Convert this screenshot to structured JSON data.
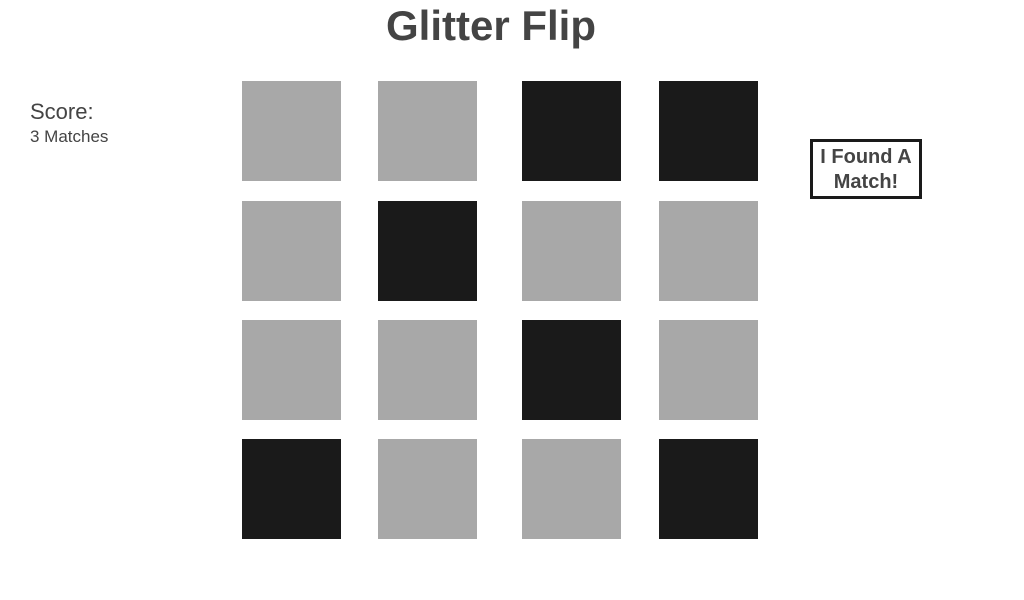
{
  "game": {
    "title": "Glitter Flip"
  },
  "score": {
    "label": "Score:",
    "value": "3 Matches"
  },
  "board": {
    "rows": 4,
    "cols": 4,
    "cards": [
      [
        "down",
        "down",
        "up",
        "up"
      ],
      [
        "down",
        "up",
        "down",
        "down"
      ],
      [
        "down",
        "down",
        "up",
        "down"
      ],
      [
        "up",
        "down",
        "down",
        "up"
      ]
    ]
  },
  "controls": {
    "match_button_label": "I Found A Match!"
  },
  "colors": {
    "card_face_down": "#a8a8a8",
    "card_face_up": "#1a1a1a",
    "text": "#444444"
  }
}
